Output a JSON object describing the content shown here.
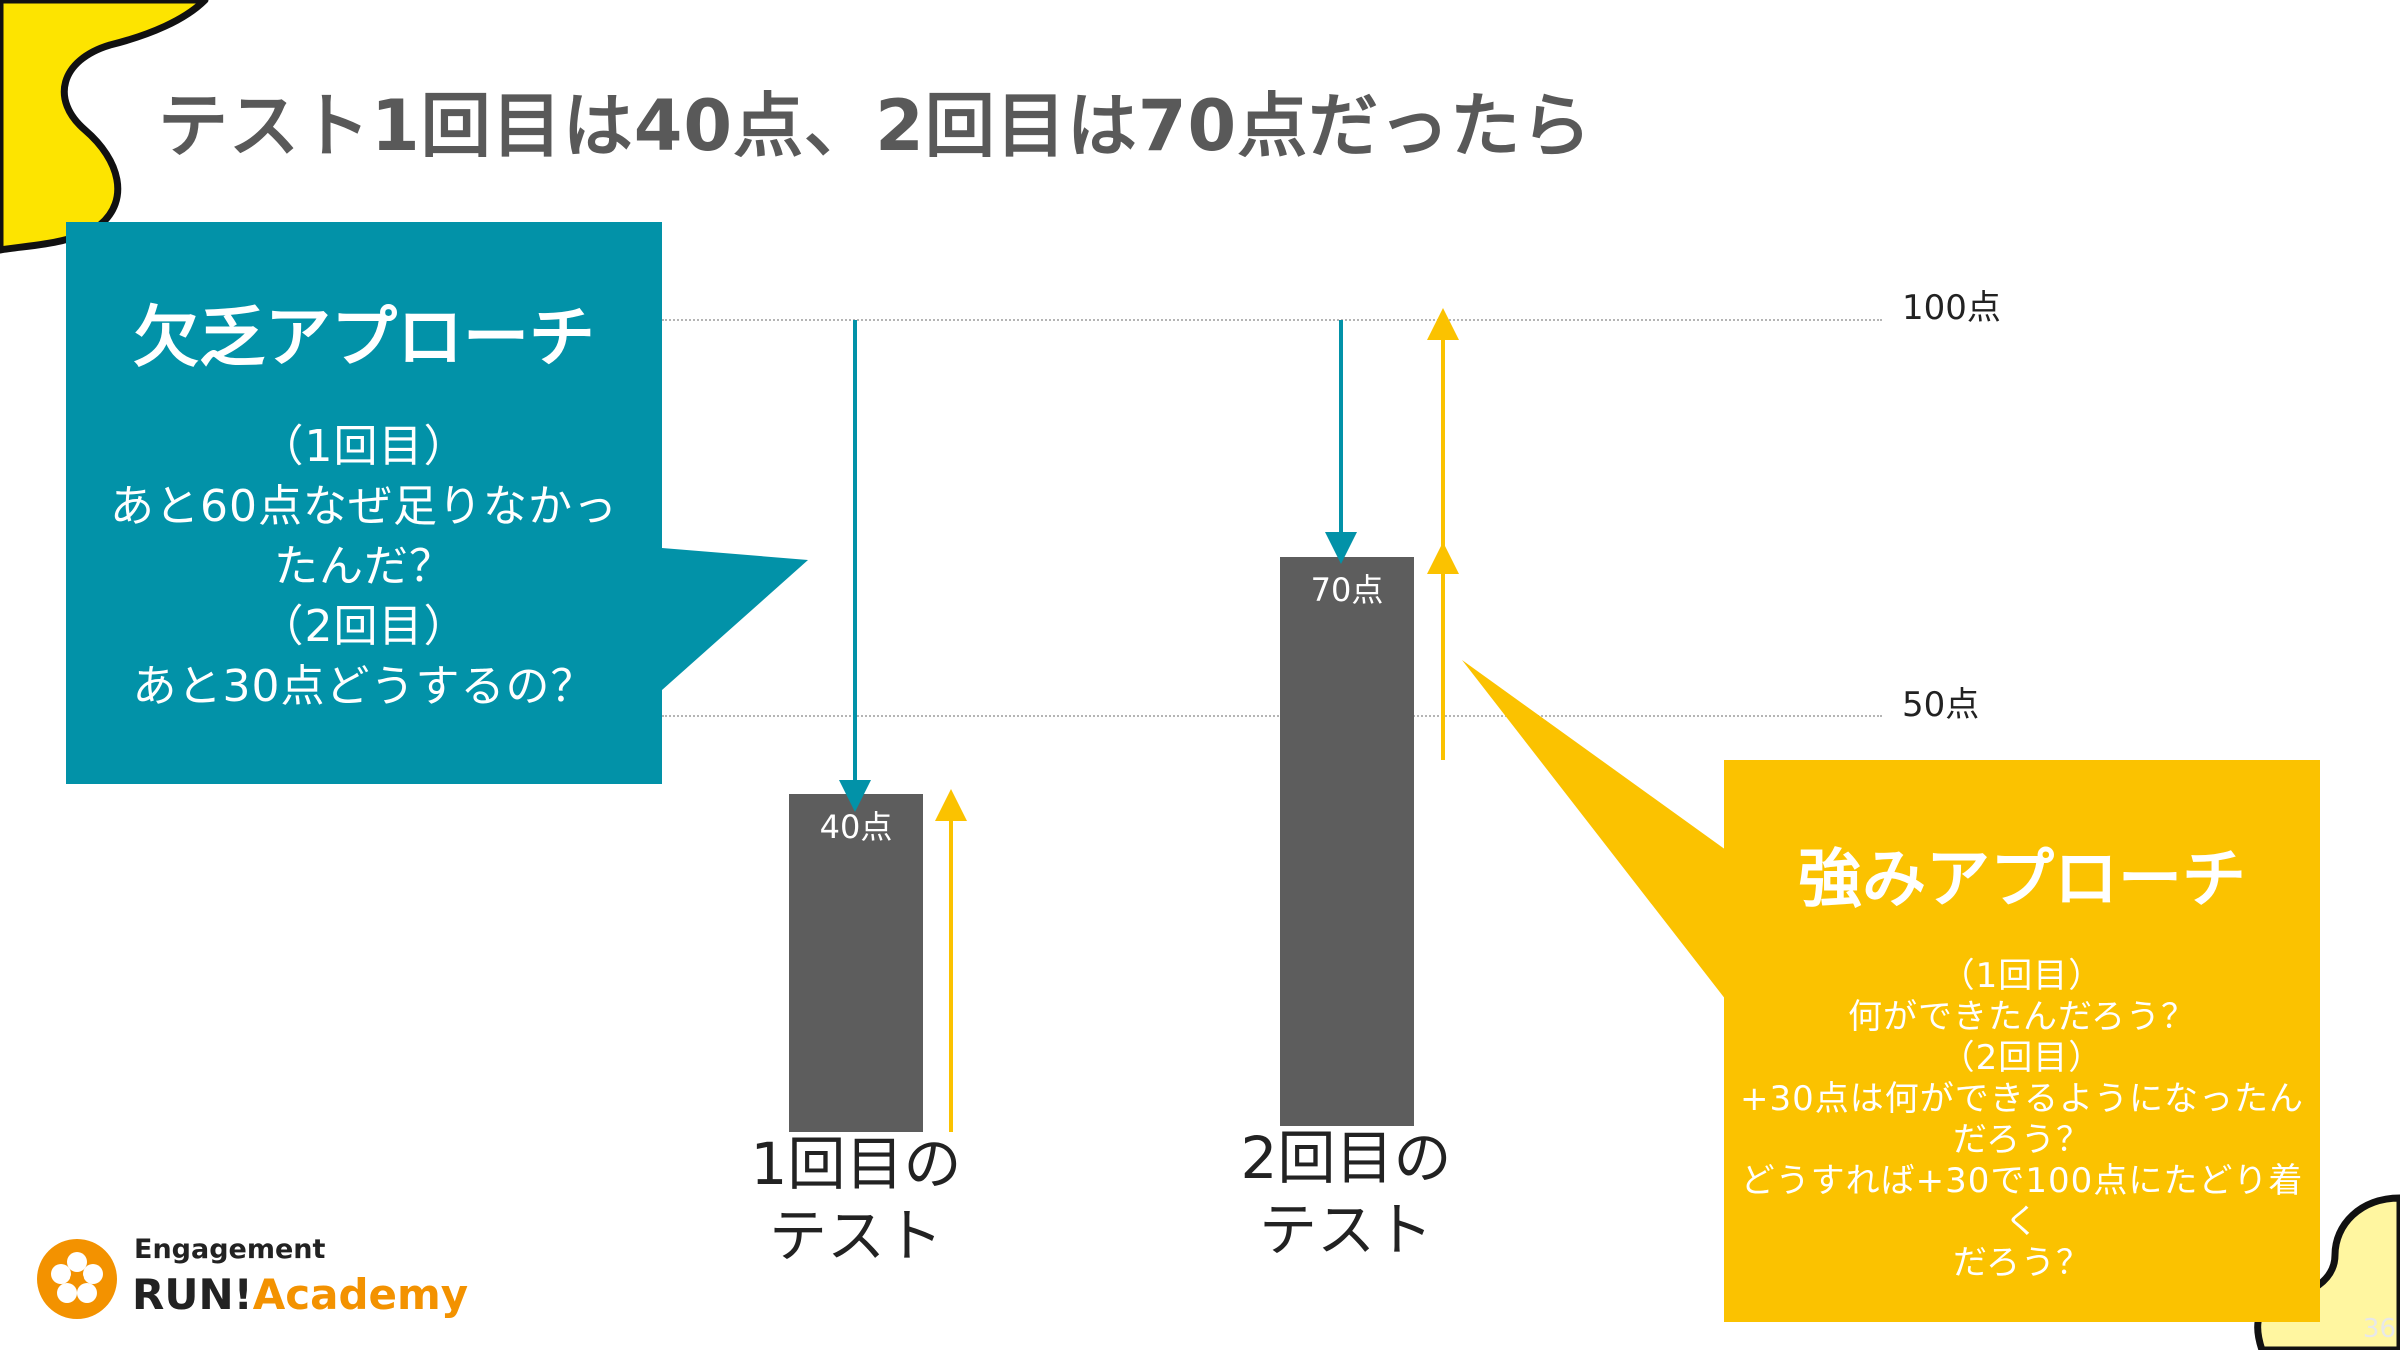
{
  "slide": {
    "title": "テスト1回目は40点、2回目は70点だったら",
    "page_number": "36"
  },
  "chart_data": {
    "type": "bar",
    "categories": [
      "1回目のテスト",
      "2回目のテスト"
    ],
    "values": [
      40,
      70
    ],
    "ylim": [
      0,
      100
    ],
    "reference_lines": [
      {
        "value": 100,
        "label": "100点"
      },
      {
        "value": 50,
        "label": "50点"
      }
    ],
    "bar_labels": [
      "40点",
      "70点"
    ],
    "category_lines": [
      [
        "1回目の",
        "テスト"
      ],
      [
        "2回目の",
        "テスト"
      ]
    ]
  },
  "deficit": {
    "title": "欠乏アプローチ",
    "lines": [
      "（1回目）",
      "あと60点なぜ足りなかっ",
      "たんだ？",
      "（2回目）",
      "あと30点どうするの？"
    ]
  },
  "strength": {
    "title": "強みアプローチ",
    "lines": [
      "（1回目）",
      "何ができたんだろう？",
      "（2回目）",
      "+30点は何ができるようになったん",
      "だろう？",
      "どうすれば+30で100点にたどり着く",
      "だろう？"
    ]
  },
  "logo": {
    "line1": "Engagement",
    "run": "RUN!",
    "academy": "Academy"
  },
  "colors": {
    "teal": "#0292a8",
    "yellow": "#fbc200",
    "bar": "#5d5d5d",
    "title": "#595959",
    "logo_orange": "#f39200"
  }
}
